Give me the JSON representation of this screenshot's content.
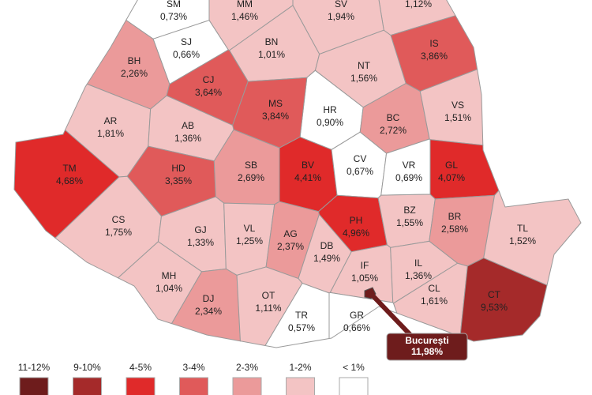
{
  "regions": [
    {
      "code": "SM",
      "value": "0,73%",
      "color": "#ffffff"
    },
    {
      "code": "MM",
      "value": "1,46%",
      "color": "#f3c4c4"
    },
    {
      "value": "1,12%",
      "color": "#f3c4c4"
    },
    {
      "code": "SV",
      "value": "1,94%",
      "color": "#f3c4c4"
    },
    {
      "code": "SJ",
      "value": "0,66%",
      "color": "#ffffff"
    },
    {
      "code": "BN",
      "value": "1,01%",
      "color": "#f3c4c4"
    },
    {
      "code": "IS",
      "value": "3,86%",
      "color": "#e05a5a"
    },
    {
      "code": "BH",
      "value": "2,26%",
      "color": "#eb9a9a"
    },
    {
      "code": "CJ",
      "value": "3,64%",
      "color": "#e05a5a"
    },
    {
      "code": "NT",
      "value": "1,56%",
      "color": "#f3c4c4"
    },
    {
      "code": "HR",
      "value": "0,90%",
      "color": "#ffffff"
    },
    {
      "code": "MS",
      "value": "3,84%",
      "color": "#e05a5a"
    },
    {
      "code": "BC",
      "value": "2,72%",
      "color": "#eb9a9a"
    },
    {
      "code": "VS",
      "value": "1,51%",
      "color": "#f3c4c4"
    },
    {
      "code": "AR",
      "value": "1,81%",
      "color": "#f3c4c4"
    },
    {
      "code": "AB",
      "value": "1,36%",
      "color": "#f3c4c4"
    },
    {
      "code": "TM",
      "value": "4,68%",
      "color": "#e02a2a"
    },
    {
      "code": "HD",
      "value": "3,35%",
      "color": "#e05a5a"
    },
    {
      "code": "SB",
      "value": "2,69%",
      "color": "#eb9a9a"
    },
    {
      "code": "BV",
      "value": "4,41%",
      "color": "#e02a2a"
    },
    {
      "code": "CV",
      "value": "0,67%",
      "color": "#ffffff"
    },
    {
      "code": "VR",
      "value": "0,69%",
      "color": "#ffffff"
    },
    {
      "code": "GL",
      "value": "4,07%",
      "color": "#e02a2a"
    },
    {
      "code": "CS",
      "value": "1,75%",
      "color": "#f3c4c4"
    },
    {
      "code": "GJ",
      "value": "1,33%",
      "color": "#f3c4c4"
    },
    {
      "code": "VL",
      "value": "1,25%",
      "color": "#f3c4c4"
    },
    {
      "code": "AG",
      "value": "2,37%",
      "color": "#eb9a9a"
    },
    {
      "code": "PH",
      "value": "4,96%",
      "color": "#e02a2a"
    },
    {
      "code": "BZ",
      "value": "1,55%",
      "color": "#f3c4c4"
    },
    {
      "code": "BR",
      "value": "2,58%",
      "color": "#eb9a9a"
    },
    {
      "code": "TL",
      "value": "1,52%",
      "color": "#f3c4c4"
    },
    {
      "code": "DB",
      "value": "1,49%",
      "color": "#f3c4c4"
    },
    {
      "code": "IF",
      "value": "1,05%",
      "color": "#f3c4c4"
    },
    {
      "code": "IL",
      "value": "1,36%",
      "color": "#f3c4c4"
    },
    {
      "code": "MH",
      "value": "1,04%",
      "color": "#f3c4c4"
    },
    {
      "code": "DJ",
      "value": "2,34%",
      "color": "#eb9a9a"
    },
    {
      "code": "OT",
      "value": "1,11%",
      "color": "#f3c4c4"
    },
    {
      "code": "TR",
      "value": "0,57%",
      "color": "#ffffff"
    },
    {
      "code": "GR",
      "value": "0,66%",
      "color": "#ffffff"
    },
    {
      "code": "CL",
      "value": "1,61%",
      "color": "#f3c4c4"
    },
    {
      "code": "CT",
      "value": "9,53%",
      "color": "#a52a2a"
    }
  ],
  "capital": {
    "name": "București",
    "value": "11,98%",
    "color": "#6e1c1c"
  },
  "legend": [
    {
      "label": "11-12%",
      "color": "#6e1c1c"
    },
    {
      "label": "9-10%",
      "color": "#a52a2a"
    },
    {
      "label": "4-5%",
      "color": "#e02a2a"
    },
    {
      "label": "3-4%",
      "color": "#e05a5a"
    },
    {
      "label": "2-3%",
      "color": "#eb9a9a"
    },
    {
      "label": "1-2%",
      "color": "#f3c4c4"
    },
    {
      "label": "< 1%",
      "color": "#ffffff"
    }
  ]
}
